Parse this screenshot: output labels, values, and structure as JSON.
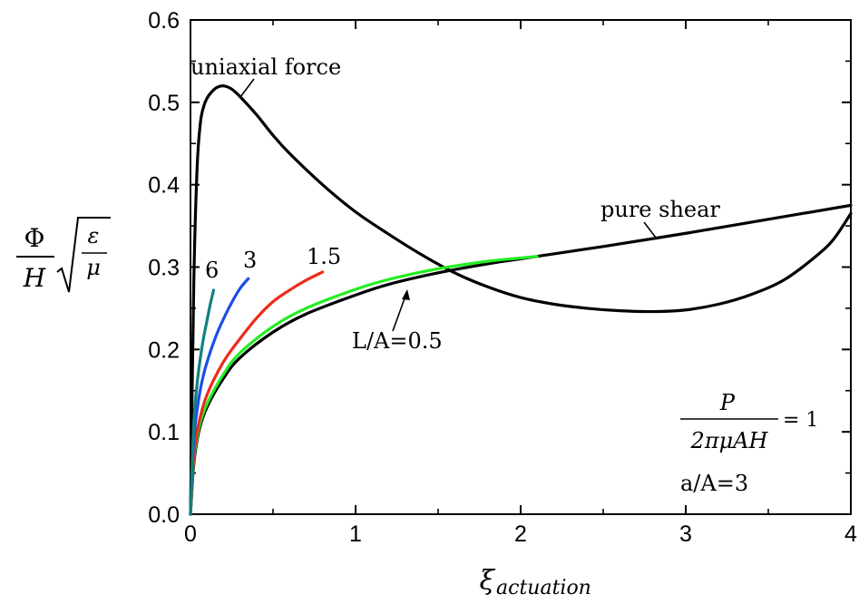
{
  "chart_data": {
    "type": "line",
    "xlabel": "ξ",
    "xlabel_sub": "actuation",
    "ylabel": {
      "numerator": "Φ",
      "denominator": "H",
      "sqrt_numerator": "ε",
      "sqrt_denominator": "μ"
    },
    "xlim": [
      0,
      4
    ],
    "ylim": [
      0,
      0.6
    ],
    "x_ticks": [
      "0",
      "1",
      "2",
      "3",
      "4"
    ],
    "y_ticks": [
      "0.0",
      "0.1",
      "0.2",
      "0.3",
      "0.4",
      "0.5",
      "0.6"
    ],
    "grid": false,
    "annotations": {
      "uniaxial": "uniaxial force",
      "pure_shear": "pure shear",
      "label_6": "6",
      "label_3": "3",
      "label_15": "1.5",
      "label_LA": "L/A=0.5",
      "formula_num": "P",
      "formula_den": "2πμAH",
      "formula_rhs": "= 1",
      "aA": "a/A=3"
    },
    "series": [
      {
        "color": "#000000",
        "x": [
          0.0,
          0.02,
          0.04,
          0.06,
          0.08,
          0.1,
          0.13,
          0.16,
          0.2,
          0.25,
          0.3,
          0.4,
          0.5,
          0.6,
          0.8,
          1.0,
          1.2,
          1.4,
          1.6,
          1.8,
          2.0,
          2.2,
          2.4,
          2.6,
          2.8,
          3.0,
          3.2,
          3.4,
          3.6,
          3.8,
          3.9,
          4.0
        ],
        "y": [
          0.0,
          0.28,
          0.42,
          0.475,
          0.495,
          0.505,
          0.513,
          0.518,
          0.52,
          0.516,
          0.507,
          0.485,
          0.46,
          0.438,
          0.4,
          0.367,
          0.34,
          0.315,
          0.293,
          0.276,
          0.263,
          0.255,
          0.25,
          0.247,
          0.246,
          0.248,
          0.255,
          0.267,
          0.285,
          0.315,
          0.335,
          0.365
        ]
      },
      {
        "color": "#000000",
        "x": [
          0.0,
          0.02,
          0.05,
          0.1,
          0.2,
          0.3,
          0.5,
          0.7,
          1.0,
          1.2,
          1.5,
          1.8,
          2.0,
          2.2,
          2.5,
          3.0,
          3.5,
          4.0
        ],
        "y": [
          0.0,
          0.06,
          0.1,
          0.13,
          0.165,
          0.19,
          0.221,
          0.243,
          0.266,
          0.279,
          0.293,
          0.304,
          0.31,
          0.316,
          0.325,
          0.341,
          0.358,
          0.375
        ]
      },
      {
        "color": "#22ee22",
        "x": [
          0.0,
          0.02,
          0.05,
          0.1,
          0.2,
          0.3,
          0.5,
          0.7,
          1.0,
          1.2,
          1.5,
          1.8,
          2.0,
          2.1
        ],
        "y": [
          0.0,
          0.065,
          0.104,
          0.134,
          0.17,
          0.196,
          0.228,
          0.25,
          0.273,
          0.285,
          0.298,
          0.307,
          0.311,
          0.313
        ]
      },
      {
        "color": "#ee2a1a",
        "x": [
          0.0,
          0.02,
          0.05,
          0.1,
          0.2,
          0.3,
          0.4,
          0.5,
          0.6,
          0.7,
          0.8
        ],
        "y": [
          0.0,
          0.07,
          0.11,
          0.145,
          0.185,
          0.213,
          0.238,
          0.258,
          0.272,
          0.284,
          0.294
        ]
      },
      {
        "color": "#1a4fe6",
        "x": [
          0.0,
          0.02,
          0.05,
          0.08,
          0.12,
          0.16,
          0.2,
          0.25,
          0.3,
          0.35
        ],
        "y": [
          0.0,
          0.09,
          0.14,
          0.17,
          0.197,
          0.219,
          0.237,
          0.257,
          0.274,
          0.286
        ]
      },
      {
        "color": "#117f7f",
        "x": [
          0.0,
          0.02,
          0.04,
          0.06,
          0.08,
          0.1,
          0.12,
          0.14
        ],
        "y": [
          0.0,
          0.11,
          0.158,
          0.19,
          0.215,
          0.235,
          0.255,
          0.272
        ]
      }
    ]
  }
}
